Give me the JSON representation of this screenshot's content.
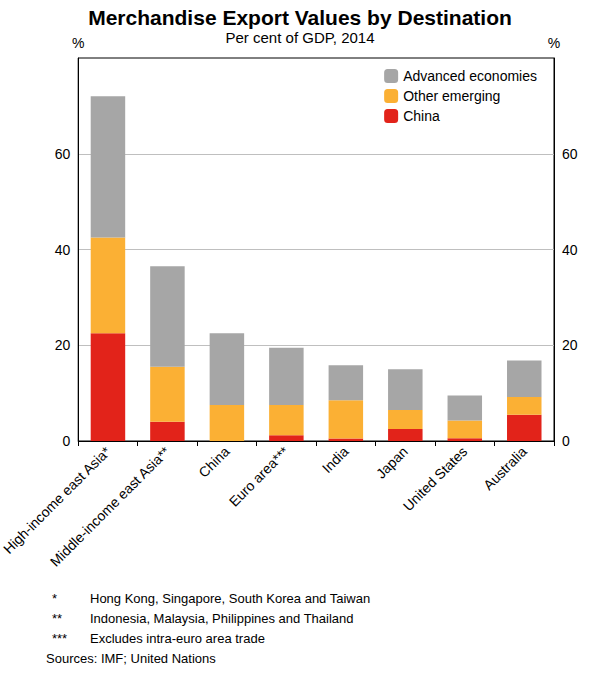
{
  "chart_data": {
    "type": "bar",
    "title": "Merchandise Export Values by Destination",
    "subtitle": "Per cent of GDP, 2014",
    "y_label": "%",
    "categories": [
      "High-income east Asia*",
      "Middle-income east Asia**",
      "China",
      "Euro area***",
      "India",
      "Japan",
      "United States",
      "Australia"
    ],
    "series": [
      {
        "name": "China",
        "color": "#e2231a",
        "values": [
          22.5,
          4,
          0,
          1.2,
          0.5,
          2.5,
          0.6,
          5.5
        ]
      },
      {
        "name": "Other emerging",
        "color": "#fbb034",
        "values": [
          20,
          11.5,
          7.5,
          6.3,
          8,
          4,
          3.7,
          3.7
        ]
      },
      {
        "name": "Advanced economies",
        "color": "#a6a6a6",
        "values": [
          29.5,
          21,
          15,
          12,
          7.3,
          8.5,
          5.2,
          7.6
        ]
      }
    ],
    "stacked": true,
    "ylim": [
      0,
      80
    ],
    "yticks": [
      0,
      20,
      40,
      60
    ],
    "grid": true,
    "legend": "top-right",
    "notes": [
      {
        "symbol": "*",
        "text": "Hong Kong, Singapore, South Korea and Taiwan"
      },
      {
        "symbol": "**",
        "text": "Indonesia, Malaysia, Philippines and Thailand"
      },
      {
        "symbol": "***",
        "text": "Excludes intra-euro area trade"
      }
    ],
    "sources": "Sources: IMF; United Nations"
  }
}
